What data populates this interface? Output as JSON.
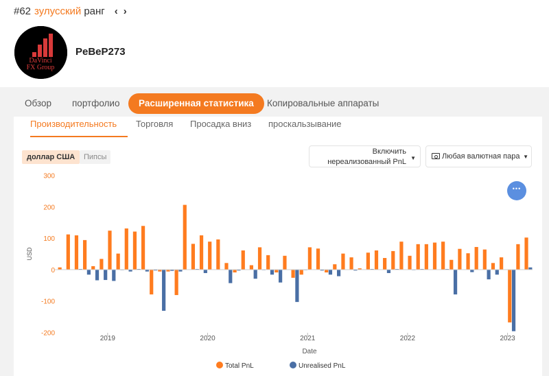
{
  "header": {
    "rank_number": "#62",
    "rank_accent": "зулусский",
    "rank_suffix": "ранг",
    "prev_icon": "chevron-left-icon",
    "next_icon": "chevron-right-icon",
    "username": "PeBeP273",
    "avatar_text": [
      "DaVinci",
      "FX Group"
    ]
  },
  "tabs": [
    {
      "label": "Обзор",
      "active": false
    },
    {
      "label": "портфолио",
      "active": false
    },
    {
      "label": "Расширенная статистика",
      "active": true
    },
    {
      "label": "Копировальные аппараты",
      "active": false
    }
  ],
  "subtabs": [
    {
      "label": "Производительность",
      "active": true
    },
    {
      "label": "Торговля",
      "active": false
    },
    {
      "label": "Просадка вниз",
      "active": false
    },
    {
      "label": "проскальзывание",
      "active": false
    }
  ],
  "controls": {
    "unit_toggle": {
      "usd": "доллар США",
      "pips": "Пипсы",
      "selected": "доллар США"
    },
    "unrealised_dropdown": {
      "line1": "Включить",
      "line2": "нереализованный PnL"
    },
    "pair_dropdown": {
      "label": "Любая валютная пара",
      "icon": "cash-icon"
    },
    "fab_icon": "more-dots-icon"
  },
  "colors": {
    "accent": "#f47a20",
    "total_pnl": "#ff7c1f",
    "unrealised_pnl": "#4a6fa5",
    "fab": "#5b8fe0"
  },
  "chart_data": {
    "type": "bar",
    "xlabel": "Date",
    "ylabel": "USD",
    "ylim": [
      -200,
      300
    ],
    "y_ticks": [
      "300",
      "200",
      "100",
      "0",
      "-100",
      "-200"
    ],
    "year_ticks": [
      {
        "label": "2019",
        "index": 6
      },
      {
        "label": "2020",
        "index": 18
      },
      {
        "label": "2021",
        "index": 30
      },
      {
        "label": "2022",
        "index": 42
      },
      {
        "label": "2023",
        "index": 54
      }
    ],
    "legend_position": "bottom-center",
    "grid": false,
    "series": [
      {
        "name": "Total PnL",
        "color": "#ff7c1f",
        "values": [
          8,
          113,
          110,
          95,
          12,
          35,
          125,
          52,
          132,
          122,
          140,
          -78,
          -5,
          -5,
          -80,
          207,
          83,
          110,
          90,
          97,
          22,
          -8,
          62,
          15,
          72,
          47,
          -8,
          45,
          -25,
          -15,
          72,
          68,
          -8,
          18,
          52,
          40,
          5,
          55,
          62,
          38,
          60,
          90,
          45,
          82,
          82,
          87,
          90,
          32,
          67,
          53,
          73,
          65,
          22,
          40,
          -167,
          82,
          103
        ]
      },
      {
        "name": "Unrealised PnL",
        "color": "#4a6fa5",
        "values": [
          2,
          2,
          3,
          -15,
          -33,
          -32,
          -35,
          1,
          -5,
          3,
          -5,
          0,
          -130,
          -3,
          -5,
          2,
          3,
          -10,
          2,
          2,
          -42,
          -2,
          2,
          -28,
          1,
          -15,
          -40,
          2,
          -102,
          1,
          2,
          -2,
          -15,
          -20,
          2,
          -2,
          2,
          3,
          2,
          -10,
          3,
          2,
          1,
          3,
          2,
          2,
          3,
          -78,
          2,
          -7,
          2,
          -30,
          -15,
          2,
          -195,
          2,
          8
        ]
      }
    ]
  }
}
